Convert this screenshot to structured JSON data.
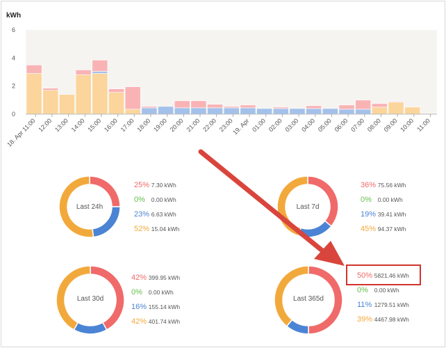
{
  "chart_data": {
    "type": "bar",
    "ylabel": "kWh",
    "ylim": [
      0,
      6
    ],
    "yticks": [
      "0",
      "2",
      "4",
      "6"
    ],
    "xtick_labels": [
      "18. Apr 11:00",
      "12:00",
      "13:00",
      "14:00",
      "15:00",
      "16:00",
      "17:00",
      "18:00",
      "19:00",
      "20:00",
      "21:00",
      "22:00",
      "23:00",
      "19. Apr",
      "01:00",
      "02:00",
      "03:00",
      "04:00",
      "05:00",
      "06:00",
      "07:00",
      "08:00",
      "09:00",
      "10:00",
      "11:00"
    ],
    "bars": [
      {
        "o": 2.9,
        "b": 0,
        "r": 0.6
      },
      {
        "o": 1.7,
        "b": 0,
        "r": 0.15
      },
      {
        "o": 1.4,
        "b": 0,
        "r": 0
      },
      {
        "o": 2.8,
        "b": 0,
        "r": 0.35
      },
      {
        "o": 2.9,
        "b": 0.15,
        "r": 0.8
      },
      {
        "o": 1.55,
        "b": 0,
        "r": 0.25
      },
      {
        "o": 0.35,
        "b": 0,
        "r": 1.6
      },
      {
        "o": 0,
        "b": 0.45,
        "r": 0.1
      },
      {
        "o": 0,
        "b": 0.55,
        "r": 0
      },
      {
        "o": 0,
        "b": 0.45,
        "r": 0.5
      },
      {
        "o": 0,
        "b": 0.45,
        "r": 0.5
      },
      {
        "o": 0,
        "b": 0.45,
        "r": 0.25
      },
      {
        "o": 0,
        "b": 0.45,
        "r": 0.1
      },
      {
        "o": 0,
        "b": 0.45,
        "r": 0.2
      },
      {
        "o": 0,
        "b": 0.4,
        "r": 0
      },
      {
        "o": 0,
        "b": 0.4,
        "r": 0.1
      },
      {
        "o": 0,
        "b": 0.4,
        "r": 0
      },
      {
        "o": 0,
        "b": 0.4,
        "r": 0.2
      },
      {
        "o": 0,
        "b": 0.4,
        "r": 0
      },
      {
        "o": 0,
        "b": 0.35,
        "r": 0.3
      },
      {
        "o": 0,
        "b": 0.35,
        "r": 0.65
      },
      {
        "o": 0.5,
        "b": 0,
        "r": 0.25
      },
      {
        "o": 0.85,
        "b": 0,
        "r": 0.05
      },
      {
        "o": 0.5,
        "b": 0,
        "r": 0
      },
      {
        "o": 0.05,
        "b": 0,
        "r": 0
      }
    ],
    "colors": {
      "orange": "#fbd59c",
      "blue": "#a3c1ea",
      "red": "#f9b3b5"
    }
  },
  "donuts": [
    {
      "label": "Last 24h",
      "rows": [
        {
          "pct": "25%",
          "val": "7.30 kWh",
          "color": "#f06a6a"
        },
        {
          "pct": "0%",
          "val": "0.00 kWh",
          "color": "#64c04a"
        },
        {
          "pct": "23%",
          "val": "6.63 kWh",
          "color": "#4b84d4"
        },
        {
          "pct": "52%",
          "val": "15.04 kWh",
          "color": "#f2a93b"
        }
      ]
    },
    {
      "label": "Last 7d",
      "rows": [
        {
          "pct": "36%",
          "val": "75.56 kWh",
          "color": "#f06a6a"
        },
        {
          "pct": "0%",
          "val": "0.00 kWh",
          "color": "#64c04a"
        },
        {
          "pct": "19%",
          "val": "39.41 kWh",
          "color": "#4b84d4"
        },
        {
          "pct": "45%",
          "val": "94.37 kWh",
          "color": "#f2a93b"
        }
      ]
    },
    {
      "label": "Last 30d",
      "rows": [
        {
          "pct": "42%",
          "val": "399.95 kWh",
          "color": "#f06a6a"
        },
        {
          "pct": "0%",
          "val": "0.00 kWh",
          "color": "#64c04a"
        },
        {
          "pct": "16%",
          "val": "155.14 kWh",
          "color": "#4b84d4"
        },
        {
          "pct": "42%",
          "val": "401.74 kWh",
          "color": "#f2a93b"
        }
      ]
    },
    {
      "label": "Last 365d",
      "rows": [
        {
          "pct": "50%",
          "val": "5821.46 kWh",
          "color": "#f06a6a"
        },
        {
          "pct": "0%",
          "val": "0.00 kWh",
          "color": "#64c04a"
        },
        {
          "pct": "11%",
          "val": "1279.51 kWh",
          "color": "#4b84d4"
        },
        {
          "pct": "39%",
          "val": "4467.98 kWh",
          "color": "#f2a93b"
        }
      ]
    }
  ],
  "donut_fractions": [
    [
      0.25,
      0,
      0.23,
      0.52
    ],
    [
      0.36,
      0,
      0.19,
      0.45
    ],
    [
      0.42,
      0,
      0.16,
      0.42
    ],
    [
      0.5,
      0,
      0.11,
      0.39
    ]
  ]
}
